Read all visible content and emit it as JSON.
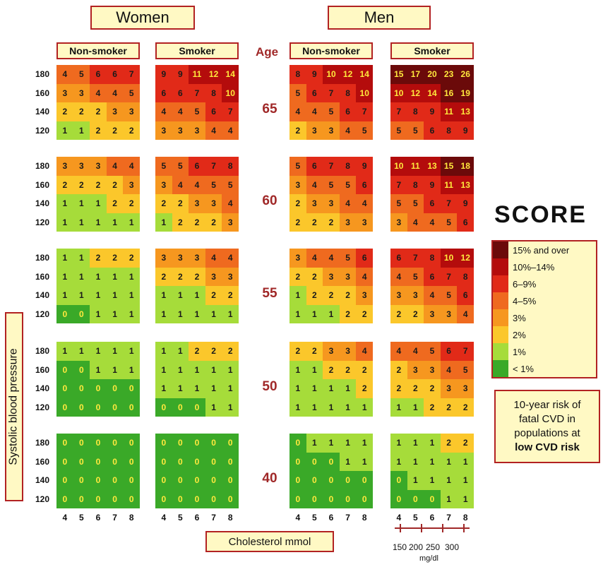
{
  "sex_headers": {
    "women": "Women",
    "men": "Men"
  },
  "status_headers": {
    "non_smoker": "Non-smoker",
    "smoker": "Smoker"
  },
  "age_header": "Age",
  "ages": [
    "65",
    "60",
    "55",
    "50",
    "40"
  ],
  "sbp_levels": [
    "180",
    "160",
    "140",
    "120"
  ],
  "cholesterol_mmol": [
    "4",
    "5",
    "6",
    "7",
    "8"
  ],
  "cholesterol_mgdl": [
    "150",
    "200",
    "250",
    "300"
  ],
  "cholesterol_mgdl_unit": "mg/dl",
  "x_axis_label": "Cholesterol mmol",
  "y_axis_label": "Systolic blood pressure",
  "logo": "SCORE",
  "legend": [
    {
      "label": "15% and over",
      "color": "#6b0a0a"
    },
    {
      "label": "10%–14%",
      "color": "#b40c0c"
    },
    {
      "label": "6–9%",
      "color": "#e12a18"
    },
    {
      "label": "4–5%",
      "color": "#ef6a1f"
    },
    {
      "label": "3%",
      "color": "#f6971f"
    },
    {
      "label": "2%",
      "color": "#fbc72b"
    },
    {
      "label": "1%",
      "color": "#a6dc3a"
    },
    {
      "label": "< 1%",
      "color": "#3aa928"
    }
  ],
  "note": {
    "line1": "10-year risk of",
    "line2": "fatal CVD in",
    "line3": "populations at",
    "line4": "low CVD risk"
  },
  "risk_tables": {
    "women_non_smoker": [
      [
        [
          4,
          5,
          6,
          6,
          7
        ],
        [
          3,
          3,
          4,
          4,
          5
        ],
        [
          2,
          2,
          2,
          3,
          3
        ],
        [
          1,
          1,
          2,
          2,
          2
        ]
      ],
      [
        [
          3,
          3,
          3,
          4,
          4
        ],
        [
          2,
          2,
          2,
          2,
          3
        ],
        [
          1,
          1,
          1,
          2,
          2
        ],
        [
          1,
          1,
          1,
          1,
          1
        ]
      ],
      [
        [
          1,
          1,
          2,
          2,
          2
        ],
        [
          1,
          1,
          1,
          1,
          1
        ],
        [
          1,
          1,
          1,
          1,
          1
        ],
        [
          0,
          0,
          1,
          1,
          1
        ]
      ],
      [
        [
          1,
          1,
          1,
          1,
          1
        ],
        [
          0,
          0,
          1,
          1,
          1
        ],
        [
          0,
          0,
          0,
          0,
          0
        ],
        [
          0,
          0,
          0,
          0,
          0
        ]
      ],
      [
        [
          0,
          0,
          0,
          0,
          0
        ],
        [
          0,
          0,
          0,
          0,
          0
        ],
        [
          0,
          0,
          0,
          0,
          0
        ],
        [
          0,
          0,
          0,
          0,
          0
        ]
      ]
    ],
    "women_smoker": [
      [
        [
          9,
          9,
          11,
          12,
          14
        ],
        [
          6,
          6,
          7,
          8,
          10
        ],
        [
          4,
          4,
          5,
          6,
          7
        ],
        [
          3,
          3,
          3,
          4,
          4
        ]
      ],
      [
        [
          5,
          5,
          6,
          7,
          8
        ],
        [
          3,
          4,
          4,
          5,
          5
        ],
        [
          2,
          2,
          3,
          3,
          4
        ],
        [
          1,
          2,
          2,
          2,
          3
        ]
      ],
      [
        [
          3,
          3,
          3,
          4,
          4
        ],
        [
          2,
          2,
          2,
          3,
          3
        ],
        [
          1,
          1,
          1,
          2,
          2
        ],
        [
          1,
          1,
          1,
          1,
          1
        ]
      ],
      [
        [
          1,
          1,
          2,
          2,
          2
        ],
        [
          1,
          1,
          1,
          1,
          1
        ],
        [
          1,
          1,
          1,
          1,
          1
        ],
        [
          0,
          0,
          0,
          1,
          1
        ]
      ],
      [
        [
          0,
          0,
          0,
          0,
          0
        ],
        [
          0,
          0,
          0,
          0,
          0
        ],
        [
          0,
          0,
          0,
          0,
          0
        ],
        [
          0,
          0,
          0,
          0,
          0
        ]
      ]
    ],
    "men_non_smoker": [
      [
        [
          8,
          9,
          10,
          12,
          14
        ],
        [
          5,
          6,
          7,
          8,
          10
        ],
        [
          4,
          4,
          5,
          6,
          7
        ],
        [
          2,
          3,
          3,
          4,
          5
        ]
      ],
      [
        [
          5,
          6,
          7,
          8,
          9
        ],
        [
          3,
          4,
          5,
          5,
          6
        ],
        [
          2,
          3,
          3,
          4,
          4
        ],
        [
          2,
          2,
          2,
          3,
          3
        ]
      ],
      [
        [
          3,
          4,
          4,
          5,
          6
        ],
        [
          2,
          2,
          3,
          3,
          4
        ],
        [
          1,
          2,
          2,
          2,
          3
        ],
        [
          1,
          1,
          1,
          2,
          2
        ]
      ],
      [
        [
          2,
          2,
          3,
          3,
          4
        ],
        [
          1,
          1,
          2,
          2,
          2
        ],
        [
          1,
          1,
          1,
          1,
          2
        ],
        [
          1,
          1,
          1,
          1,
          1
        ]
      ],
      [
        [
          0,
          1,
          1,
          1,
          1
        ],
        [
          0,
          0,
          0,
          1,
          1
        ],
        [
          0,
          0,
          0,
          0,
          0
        ],
        [
          0,
          0,
          0,
          0,
          0
        ]
      ]
    ],
    "men_smoker": [
      [
        [
          15,
          17,
          20,
          23,
          26
        ],
        [
          10,
          12,
          14,
          16,
          19
        ],
        [
          7,
          8,
          9,
          11,
          13
        ],
        [
          5,
          5,
          6,
          8,
          9
        ]
      ],
      [
        [
          10,
          11,
          13,
          15,
          18
        ],
        [
          7,
          8,
          9,
          11,
          13
        ],
        [
          5,
          5,
          6,
          7,
          9
        ],
        [
          3,
          4,
          4,
          5,
          6
        ]
      ],
      [
        [
          6,
          7,
          8,
          10,
          12
        ],
        [
          4,
          5,
          6,
          7,
          8
        ],
        [
          3,
          3,
          4,
          5,
          6
        ],
        [
          2,
          2,
          3,
          3,
          4
        ]
      ],
      [
        [
          4,
          4,
          5,
          6,
          7
        ],
        [
          2,
          3,
          3,
          4,
          5
        ],
        [
          2,
          2,
          2,
          3,
          3
        ],
        [
          1,
          1,
          2,
          2,
          2
        ]
      ],
      [
        [
          1,
          1,
          1,
          2,
          2
        ],
        [
          1,
          1,
          1,
          1,
          1
        ],
        [
          0,
          1,
          1,
          1,
          1
        ],
        [
          0,
          0,
          0,
          1,
          1
        ]
      ]
    ]
  }
}
